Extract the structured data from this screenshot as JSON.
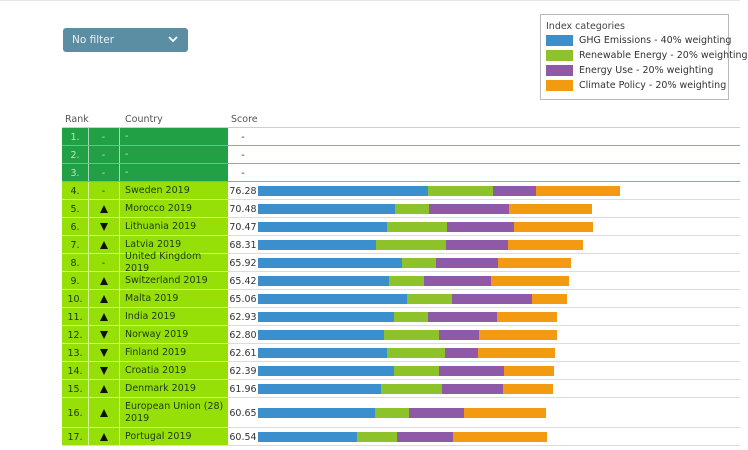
{
  "filter": {
    "label": "No filter"
  },
  "legend": {
    "title": "Index categories",
    "items": [
      {
        "label": "GHG Emissions - 40% weighting",
        "color": "#3b8fcc"
      },
      {
        "label": "Renewable Energy - 20% weighting",
        "color": "#8dc22a"
      },
      {
        "label": "Energy Use - 20% weighting",
        "color": "#8e5aa8"
      },
      {
        "label": "Climate Policy - 20% weighting",
        "color": "#f29a12"
      }
    ]
  },
  "table": {
    "headers": {
      "rank": "Rank",
      "country": "Country",
      "score": "Score"
    }
  },
  "colors": {
    "empty_rank_bg": "#22a046",
    "ranked_bg": "#96e007",
    "line": "#dcdcdc"
  },
  "chart_data": {
    "type": "bar",
    "stacked": true,
    "orientation": "horizontal",
    "series_names": [
      "GHG Emissions - 40% weighting",
      "Renewable Energy - 20% weighting",
      "Energy Use - 20% weighting",
      "Climate Policy - 20% weighting"
    ],
    "rows": [
      {
        "rank": "1.",
        "movement": "-",
        "country": "-",
        "score": "-",
        "empty": true,
        "values": []
      },
      {
        "rank": "2.",
        "movement": "-",
        "country": "-",
        "score": "-",
        "empty": true,
        "values": []
      },
      {
        "rank": "3.",
        "movement": "-",
        "country": "-",
        "score": "-",
        "empty": true,
        "values": []
      },
      {
        "rank": "4.",
        "movement": "-",
        "country": "Sweden 2019",
        "score": "76.28",
        "values": [
          33.2,
          12.5,
          8.5,
          16.3
        ]
      },
      {
        "rank": "5.",
        "movement": "up",
        "country": "Morocco 2019",
        "score": "70.48",
        "values": [
          26.7,
          6.6,
          15.6,
          16.1
        ]
      },
      {
        "rank": "6.",
        "movement": "down",
        "country": "Lithuania 2019",
        "score": "70.47",
        "values": [
          25.2,
          11.7,
          13.0,
          15.3
        ]
      },
      {
        "rank": "7.",
        "movement": "up",
        "country": "Latvia 2019",
        "score": "68.31",
        "values": [
          23.0,
          13.6,
          12.0,
          14.6
        ]
      },
      {
        "rank": "8.",
        "movement": "-",
        "country": "United Kingdom 2019",
        "score": "65.92",
        "values": [
          28.0,
          6.7,
          12.0,
          14.3
        ]
      },
      {
        "rank": "9.",
        "movement": "up",
        "country": "Switzerland 2019",
        "score": "65.42",
        "values": [
          25.6,
          6.8,
          12.9,
          15.2
        ]
      },
      {
        "rank": "10.",
        "movement": "up",
        "country": "Malta 2019",
        "score": "65.06",
        "values": [
          29.0,
          8.7,
          15.6,
          6.8
        ]
      },
      {
        "rank": "11.",
        "movement": "up",
        "country": "India 2019",
        "score": "62.93",
        "values": [
          26.5,
          6.6,
          13.4,
          11.7
        ]
      },
      {
        "rank": "12.",
        "movement": "down",
        "country": "Norway 2019",
        "score": "62.80",
        "values": [
          24.6,
          10.7,
          7.7,
          15.2
        ]
      },
      {
        "rank": "13.",
        "movement": "down",
        "country": "Finland 2019",
        "score": "62.61",
        "values": [
          25.2,
          11.3,
          6.4,
          14.9
        ]
      },
      {
        "rank": "14.",
        "movement": "down",
        "country": "Croatia 2019",
        "score": "62.39",
        "values": [
          26.5,
          8.7,
          12.8,
          9.6
        ]
      },
      {
        "rank": "15.",
        "movement": "up",
        "country": "Denmark 2019",
        "score": "61.96",
        "values": [
          23.9,
          12.0,
          11.9,
          9.6
        ]
      },
      {
        "rank": "16.",
        "movement": "up",
        "country": "European Union (28) 2019",
        "score": "60.65",
        "values": [
          22.7,
          6.8,
          10.7,
          15.8
        ]
      },
      {
        "rank": "17.",
        "movement": "up",
        "country": "Portugal 2019",
        "score": "60.54",
        "values": [
          19.2,
          7.8,
          11.0,
          18.2
        ]
      }
    ]
  }
}
